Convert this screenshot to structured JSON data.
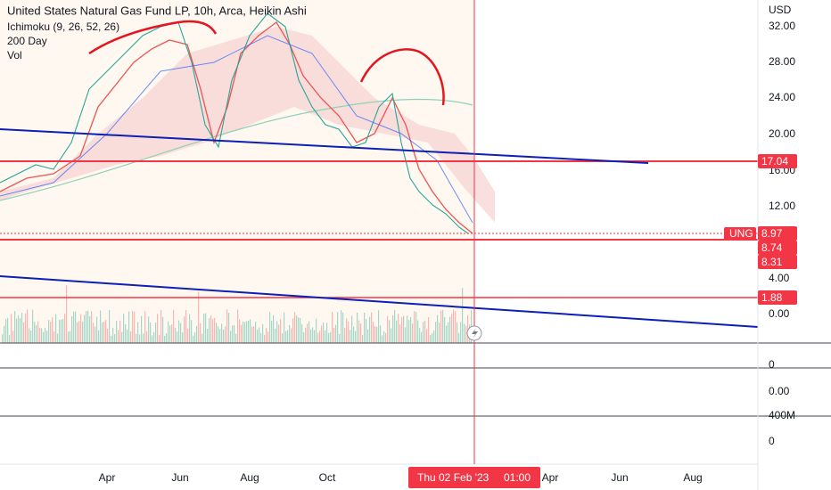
{
  "header": {
    "title": "United States Natural Gas Fund LP, 10h, Arca, Heikin Ashi",
    "indicators": [
      "Ichimoku (9, 26, 52, 26)",
      "200 Day",
      "Vol"
    ]
  },
  "price_axis": {
    "unit": "USD",
    "labels": [
      "32.00",
      "28.00",
      "24.00",
      "20.00",
      "16.00",
      "12.00",
      "4.00",
      "0.00"
    ]
  },
  "symbol_tag": "UNG",
  "price_tags": [
    "17.04",
    "8.97",
    "8.74",
    "8.31",
    "1.88"
  ],
  "pane_labels": [
    "0",
    "0.00",
    "400M",
    "0"
  ],
  "time_axis": {
    "labels": [
      "Apr",
      "Jun",
      "Aug",
      "Oct"
    ],
    "cursor_date": "Thu 02 Feb '23",
    "cursor_time": "01:00",
    "future_labels": [
      "Apr",
      "Jun",
      "Aug"
    ]
  }
}
